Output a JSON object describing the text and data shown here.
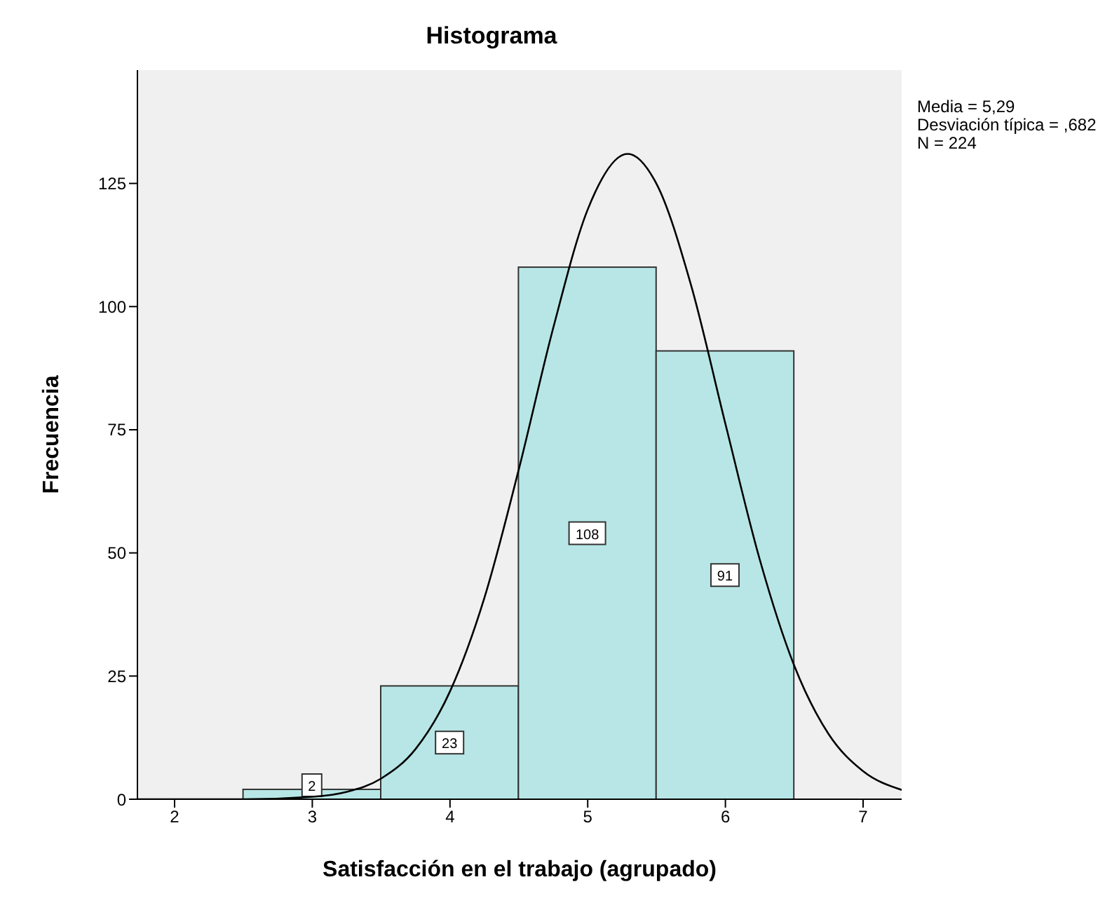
{
  "chart_data": {
    "type": "histogram",
    "title": "Histograma",
    "xlabel": "Satisfacción en el trabajo (agrupado)",
    "ylabel": "Frecuencia",
    "bins": [
      2.5,
      3.5,
      4.5,
      5.5,
      6.5
    ],
    "values": [
      2,
      23,
      108,
      91
    ],
    "color": "#b8e6e6",
    "value_labels": [
      "2",
      "23",
      "108",
      "91"
    ],
    "series": [
      {
        "type": "line",
        "color": "#000000",
        "x": [
          1.73,
          2.0,
          2.5,
          3.0,
          3.25,
          3.5,
          3.75,
          4.0,
          4.25,
          4.5,
          4.75,
          5.0,
          5.29,
          5.5,
          5.75,
          6.0,
          6.25,
          6.5,
          6.75,
          7.0,
          7.28
        ],
        "values": [
          0,
          0,
          0,
          0.5,
          1.5,
          4.2,
          10.2,
          21.9,
          40.9,
          67,
          95.7,
          119.7,
          131,
          124.9,
          104.4,
          76.2,
          48.6,
          27.1,
          13.2,
          5.7,
          1.9
        ]
      }
    ],
    "xlim": [
      1.73,
      7.28
    ],
    "xticks": [
      2,
      3,
      4,
      5,
      6,
      7
    ],
    "ylim": [
      0,
      148
    ],
    "yticks": [
      0,
      25,
      50,
      75,
      100,
      125
    ],
    "grid": false,
    "annotations": [
      "Media = 5,29",
      "Desviación típica = ,682",
      "N = 224"
    ]
  }
}
